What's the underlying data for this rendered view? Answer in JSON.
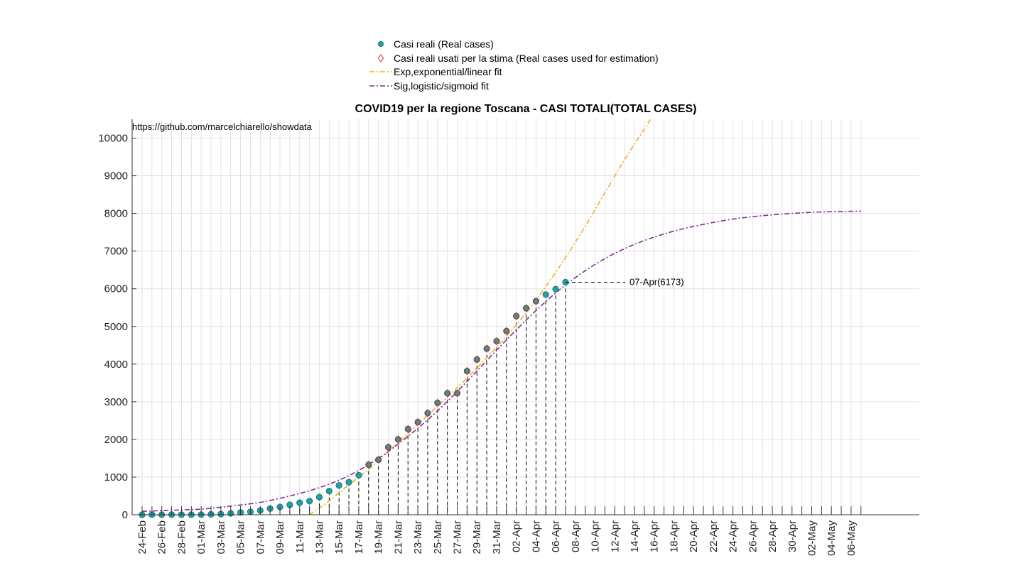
{
  "chart_data": {
    "type": "line",
    "title": "COVID19 per la regione Toscana - CASI TOTALI(TOTAL CASES)",
    "source_note": "https://github.com/marcelchiarello/showdata",
    "ylim": [
      0,
      10500
    ],
    "yticks": [
      0,
      1000,
      2000,
      3000,
      4000,
      5000,
      6000,
      7000,
      8000,
      9000,
      10000
    ],
    "x_dates": [
      "24-Feb",
      "25-Feb",
      "26-Feb",
      "27-Feb",
      "28-Feb",
      "29-Feb",
      "01-Mar",
      "02-Mar",
      "03-Mar",
      "04-Mar",
      "05-Mar",
      "06-Mar",
      "07-Mar",
      "08-Mar",
      "09-Mar",
      "10-Mar",
      "11-Mar",
      "12-Mar",
      "13-Mar",
      "14-Mar",
      "15-Mar",
      "16-Mar",
      "17-Mar",
      "18-Mar",
      "19-Mar",
      "20-Mar",
      "21-Mar",
      "22-Mar",
      "23-Mar",
      "24-Mar",
      "25-Mar",
      "26-Mar",
      "27-Mar",
      "28-Mar",
      "29-Mar",
      "30-Mar",
      "31-Mar",
      "01-Apr",
      "02-Apr",
      "03-Apr",
      "04-Apr",
      "05-Apr",
      "06-Apr",
      "07-Apr",
      "08-Apr",
      "09-Apr",
      "10-Apr",
      "11-Apr",
      "12-Apr",
      "13-Apr",
      "14-Apr",
      "15-Apr",
      "16-Apr",
      "17-Apr",
      "18-Apr",
      "19-Apr",
      "20-Apr",
      "21-Apr",
      "22-Apr",
      "23-Apr",
      "24-Apr",
      "25-Apr",
      "26-Apr",
      "27-Apr",
      "28-Apr",
      "29-Apr",
      "30-Apr",
      "01-May",
      "02-May",
      "03-May",
      "04-May",
      "05-May",
      "06-May",
      "07-May"
    ],
    "xtick_labels": [
      "24-Feb",
      "26-Feb",
      "28-Feb",
      "01-Mar",
      "03-Mar",
      "05-Mar",
      "07-Mar",
      "09-Mar",
      "11-Mar",
      "13-Mar",
      "15-Mar",
      "17-Mar",
      "19-Mar",
      "21-Mar",
      "23-Mar",
      "25-Mar",
      "27-Mar",
      "29-Mar",
      "31-Mar",
      "02-Apr",
      "04-Apr",
      "06-Apr",
      "08-Apr",
      "10-Apr",
      "12-Apr",
      "14-Apr",
      "16-Apr",
      "18-Apr",
      "20-Apr",
      "22-Apr",
      "24-Apr",
      "26-Apr",
      "28-Apr",
      "30-Apr",
      "02-May",
      "04-May",
      "06-May"
    ],
    "grid": true,
    "legend_position": "top-center",
    "colors": {
      "real": "#1aa5a5",
      "real_edge": "#2b5a7a",
      "used": "#e8291c",
      "exp": "#edb120",
      "sig": "#7e2f8e"
    },
    "series": [
      {
        "name": "Casi reali (Real cases)",
        "dates": [
          "24-Feb",
          "25-Feb",
          "26-Feb",
          "27-Feb",
          "28-Feb",
          "29-Feb",
          "01-Mar",
          "02-Mar",
          "03-Mar",
          "04-Mar",
          "05-Mar",
          "06-Mar",
          "07-Mar",
          "08-Mar",
          "09-Mar",
          "10-Mar",
          "11-Mar",
          "12-Mar",
          "13-Mar",
          "14-Mar",
          "15-Mar",
          "16-Mar",
          "17-Mar",
          "18-Mar",
          "19-Mar",
          "20-Mar",
          "21-Mar",
          "22-Mar",
          "23-Mar",
          "24-Mar",
          "25-Mar",
          "26-Mar",
          "27-Mar",
          "28-Mar",
          "29-Mar",
          "30-Mar",
          "31-Mar",
          "01-Apr",
          "02-Apr",
          "03-Apr",
          "04-Apr",
          "05-Apr",
          "06-Apr",
          "07-Apr"
        ],
        "values": [
          0,
          2,
          2,
          2,
          2,
          2,
          2,
          11,
          19,
          38,
          61,
          79,
          113,
          166,
          208,
          264,
          320,
          364,
          470,
          630,
          781,
          866,
          1050,
          1330,
          1460,
          1793,
          2000,
          2277,
          2461,
          2699,
          2972,
          3226,
          3226,
          3815,
          4122,
          4412,
          4608,
          4877,
          5273,
          5483,
          5671,
          5847,
          5990,
          6173
        ]
      },
      {
        "name": "Casi reali usati per la stima (Real cases used for estimation)",
        "dates": [
          "18-Mar",
          "19-Mar",
          "20-Mar",
          "21-Mar",
          "22-Mar",
          "23-Mar",
          "24-Mar",
          "25-Mar",
          "26-Mar",
          "27-Mar",
          "28-Mar",
          "29-Mar",
          "30-Mar",
          "31-Mar",
          "01-Apr",
          "02-Apr",
          "03-Apr",
          "04-Apr"
        ],
        "values": [
          1330,
          1460,
          1793,
          2000,
          2277,
          2461,
          2699,
          2972,
          3226,
          3226,
          3815,
          4122,
          4412,
          4608,
          4877,
          5273,
          5483,
          5671
        ]
      },
      {
        "name": "Exp,exponential/linear fit",
        "dates": [
          "12-Mar",
          "14-Mar",
          "16-Mar",
          "18-Mar",
          "20-Mar",
          "22-Mar",
          "24-Mar",
          "26-Mar",
          "28-Mar",
          "30-Mar",
          "01-Apr",
          "03-Apr",
          "05-Apr",
          "07-Apr",
          "09-Apr",
          "11-Apr",
          "13-Apr",
          "15-Apr",
          "16-Apr"
        ],
        "values": [
          0,
          370,
          800,
          1200,
          1680,
          2150,
          2640,
          3120,
          3630,
          4170,
          4740,
          5360,
          6060,
          6830,
          7660,
          8550,
          9430,
          10240,
          10650
        ]
      },
      {
        "name": "Sig,logistic/sigmoid fit",
        "dates": [
          "24-Feb",
          "27-Feb",
          "01-Mar",
          "04-Mar",
          "07-Mar",
          "10-Mar",
          "13-Mar",
          "16-Mar",
          "19-Mar",
          "22-Mar",
          "25-Mar",
          "28-Mar",
          "31-Mar",
          "03-Apr",
          "06-Apr",
          "09-Apr",
          "12-Apr",
          "15-Apr",
          "18-Apr",
          "21-Apr",
          "24-Apr",
          "27-Apr",
          "30-Apr",
          "03-May",
          "07-May"
        ],
        "values": [
          90,
          120,
          150,
          230,
          330,
          500,
          720,
          1040,
          1500,
          2080,
          2760,
          3540,
          4370,
          5170,
          5890,
          6480,
          6940,
          7280,
          7530,
          7710,
          7850,
          7940,
          8000,
          8040,
          8060
        ]
      }
    ],
    "annotation": {
      "date": "07-Apr",
      "value": 6173,
      "text": "07-Apr(6173)"
    }
  }
}
